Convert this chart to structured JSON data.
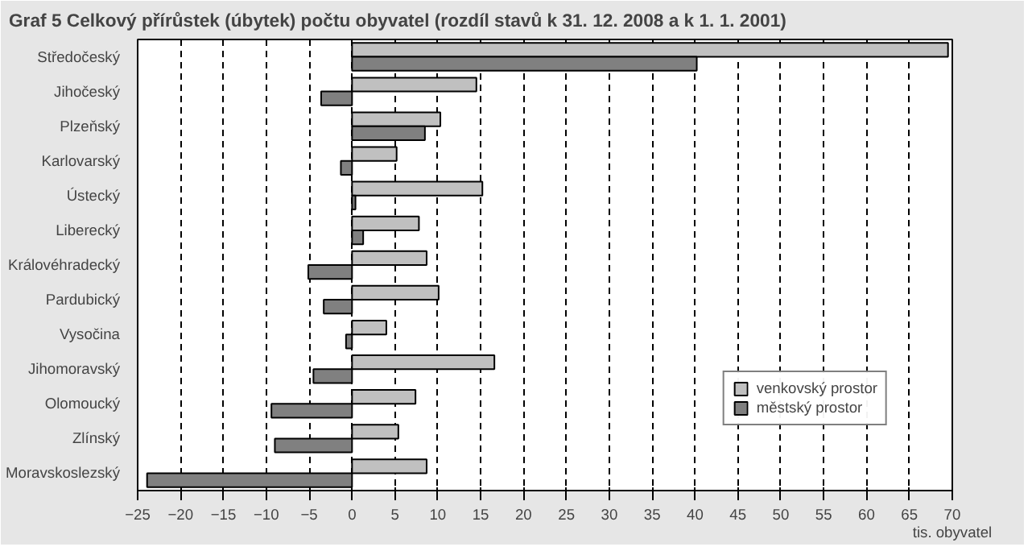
{
  "chart_data": {
    "type": "bar",
    "orientation": "horizontal",
    "title": "Graf 5 Celkový přírůstek (úbytek) počtu obyvatel (rozdíl stavů k 31. 12. 2008 a k 1. 1. 2001)",
    "xlabel": "tis. obyvatel",
    "categories": [
      "Středočeský",
      "Jihočeský",
      "Plzeňský",
      "Karlovarský",
      "Ústecký",
      "Liberecký",
      "Královéhradecký",
      "Pardubický",
      "Vysočina",
      "Jihomoravský",
      "Olomoucký",
      "Zlínský",
      "Moravskoslezský"
    ],
    "series": [
      {
        "name": "venkovský prostor",
        "color": "#c0c0c0",
        "values": [
          69.5,
          14.5,
          10.3,
          5.2,
          15.2,
          7.8,
          8.7,
          10.1,
          4.0,
          16.6,
          7.4,
          5.4,
          8.7
        ]
      },
      {
        "name": "městský prostor",
        "color": "#808080",
        "values": [
          40.2,
          -3.6,
          8.5,
          -1.3,
          0.4,
          1.3,
          -5.1,
          -3.3,
          -0.7,
          -4.5,
          -9.4,
          -9.0,
          -23.9
        ]
      }
    ],
    "xlim": [
      -25,
      70
    ],
    "xticks": [
      -25,
      -20,
      -15,
      -10,
      -5,
      0,
      5,
      10,
      15,
      20,
      25,
      30,
      35,
      40,
      45,
      50,
      55,
      60,
      65,
      70
    ],
    "grid": "x",
    "legend": "bottom right"
  }
}
